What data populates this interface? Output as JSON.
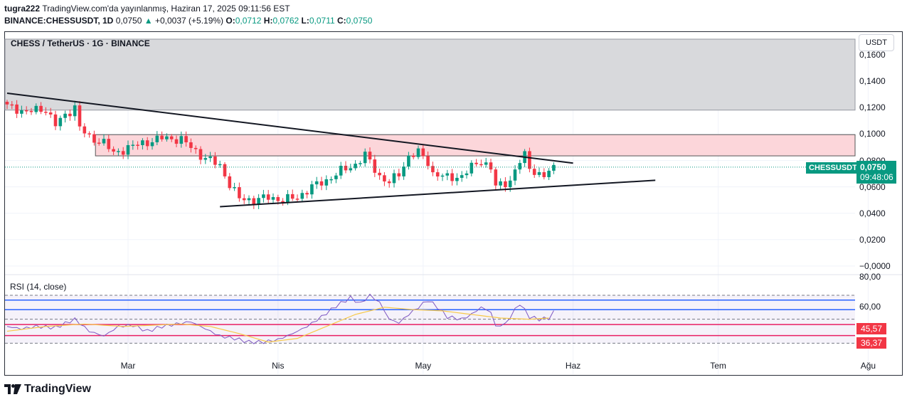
{
  "header": {
    "line1_user": "tugra222",
    "line1_rest": "TradingView.com'da yayınlanmış, Haziran 17, 2025 09:11:56 EST",
    "symbol_line": "BINANCE:CHESSUSDT, 1D",
    "price": "0,0750",
    "change": "+0,0037 (+5.19%)",
    "o_label": "O:",
    "o": "0,0712",
    "h_label": "H:",
    "h": "0,0762",
    "l_label": "L:",
    "l": "0,0711",
    "c_label": "C:",
    "c": "0,0750"
  },
  "legend": "CHESS / TetherUS · 1G · BINANCE",
  "rsi_legend": "RSI (14, close)",
  "currency": "USDT",
  "price_tag": {
    "symbol": "CHESSUSDT",
    "price": "0,0750",
    "countdown": "09:48:06"
  },
  "rsi_tags": {
    "upper": "45,57",
    "lower": "36,37"
  },
  "logo_text": "TradingView",
  "colors": {
    "up": "#089981",
    "down": "#f23645",
    "rsi": "#7e57c2",
    "rsi_ma": "#f7c948",
    "zone_gray": "#d8d9dc",
    "zone_pink": "#fcd6da",
    "band_blue": "#2962ff",
    "band_red": "#e91e63"
  },
  "chart_data": {
    "type": "candlestick",
    "title": "CHESS / TetherUS · 1G · BINANCE",
    "ylabel": "USDT",
    "ylim": [
      -0.006,
      0.172
    ],
    "price_ticks": [
      "0,1600",
      "0,1400",
      "0,1200",
      "0,1000",
      "0,0800",
      "0,0600",
      "0,0400",
      "0,0200",
      "−0,0000"
    ],
    "price_tick_values": [
      0.16,
      0.14,
      0.12,
      0.1,
      0.08,
      0.06,
      0.04,
      0.02,
      0.0
    ],
    "x_ticks": [
      "Mar",
      "Nis",
      "May",
      "Haz",
      "Tem",
      "Ağu"
    ],
    "x_tick_index": [
      25,
      56,
      86,
      117,
      147,
      178
    ],
    "ohlc_anchors": [
      [
        0,
        0.121
      ],
      [
        4,
        0.117
      ],
      [
        8,
        0.119
      ],
      [
        10,
        0.107
      ],
      [
        12,
        0.114
      ],
      [
        14,
        0.121
      ],
      [
        15,
        0.105
      ],
      [
        17,
        0.097
      ],
      [
        20,
        0.094
      ],
      [
        22,
        0.085
      ],
      [
        25,
        0.09
      ],
      [
        28,
        0.093
      ],
      [
        32,
        0.097
      ],
      [
        36,
        0.096
      ],
      [
        40,
        0.084
      ],
      [
        44,
        0.076
      ],
      [
        46,
        0.062
      ],
      [
        48,
        0.051
      ],
      [
        51,
        0.05
      ],
      [
        54,
        0.052
      ],
      [
        57,
        0.05
      ],
      [
        60,
        0.052
      ],
      [
        63,
        0.06
      ],
      [
        66,
        0.065
      ],
      [
        69,
        0.072
      ],
      [
        72,
        0.077
      ],
      [
        74,
        0.084
      ],
      [
        75,
        0.079
      ],
      [
        77,
        0.068
      ],
      [
        79,
        0.063
      ],
      [
        81,
        0.07
      ],
      [
        83,
        0.083
      ],
      [
        85,
        0.086
      ],
      [
        87,
        0.079
      ],
      [
        88,
        0.07
      ],
      [
        91,
        0.067
      ],
      [
        94,
        0.068
      ],
      [
        96,
        0.075
      ],
      [
        98,
        0.08
      ],
      [
        100,
        0.074
      ],
      [
        101,
        0.06
      ],
      [
        104,
        0.065
      ],
      [
        106,
        0.079
      ],
      [
        107,
        0.084
      ],
      [
        108,
        0.075
      ],
      [
        110,
        0.069
      ],
      [
        111,
        0.068
      ],
      [
        112,
        0.071
      ],
      [
        113,
        0.075
      ]
    ],
    "rsi": {
      "name": "RSI (14, close)",
      "upper_band": 70,
      "lower_band": 30,
      "visible_ticks": [
        "80,00",
        "60,00"
      ],
      "levels": [
        45.57,
        36.37
      ],
      "anchors": [
        [
          0,
          44
        ],
        [
          3,
          42
        ],
        [
          6,
          44
        ],
        [
          10,
          43
        ],
        [
          14,
          50
        ],
        [
          17,
          40
        ],
        [
          20,
          36
        ],
        [
          23,
          44
        ],
        [
          26,
          45
        ],
        [
          29,
          40
        ],
        [
          32,
          44
        ],
        [
          35,
          46
        ],
        [
          38,
          48
        ],
        [
          41,
          42
        ],
        [
          44,
          36
        ],
        [
          47,
          34
        ],
        [
          50,
          31
        ],
        [
          53,
          31
        ],
        [
          56,
          33
        ],
        [
          59,
          38
        ],
        [
          62,
          44
        ],
        [
          65,
          52
        ],
        [
          68,
          61
        ],
        [
          71,
          68
        ],
        [
          73,
          63
        ],
        [
          75,
          70
        ],
        [
          77,
          64
        ],
        [
          79,
          50
        ],
        [
          81,
          47
        ],
        [
          83,
          54
        ],
        [
          85,
          60
        ],
        [
          87,
          66
        ],
        [
          89,
          60
        ],
        [
          91,
          52
        ],
        [
          94,
          50
        ],
        [
          96,
          54
        ],
        [
          98,
          60
        ],
        [
          100,
          56
        ],
        [
          101,
          44
        ],
        [
          103,
          46
        ],
        [
          105,
          58
        ],
        [
          106,
          63
        ],
        [
          108,
          52
        ],
        [
          110,
          50
        ],
        [
          112,
          51
        ],
        [
          113,
          56
        ]
      ],
      "ma_anchors": [
        [
          0,
          40
        ],
        [
          8,
          44
        ],
        [
          16,
          46
        ],
        [
          24,
          44
        ],
        [
          30,
          45
        ],
        [
          36,
          46
        ],
        [
          42,
          44
        ],
        [
          48,
          38
        ],
        [
          54,
          31
        ],
        [
          60,
          34
        ],
        [
          66,
          44
        ],
        [
          72,
          54
        ],
        [
          78,
          60
        ],
        [
          84,
          58
        ],
        [
          90,
          57
        ],
        [
          96,
          54
        ],
        [
          102,
          51
        ],
        [
          108,
          50
        ],
        [
          112,
          51
        ]
      ]
    },
    "zones": [
      {
        "name": "resistance-zone",
        "from": 0.1182,
        "to": 0.172
      },
      {
        "name": "supply-zone",
        "from": 0.0835,
        "to": 0.0996,
        "start_index": 19
      }
    ],
    "trendlines": [
      {
        "name": "descending-trendline",
        "from": [
          0,
          0.131
        ],
        "to": [
          117,
          0.078
        ]
      },
      {
        "name": "ascending-trendline",
        "from": [
          44,
          0.045
        ],
        "to": [
          134,
          0.065
        ]
      }
    ]
  }
}
